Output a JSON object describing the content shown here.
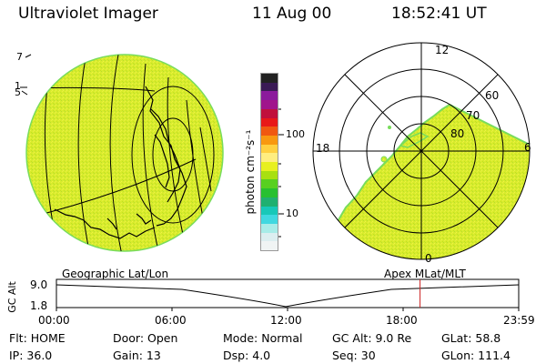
{
  "header": {
    "instrument": "Ultraviolet Imager",
    "date": "11 Aug 00",
    "time": "18:52:41 UT"
  },
  "left_map": {
    "label": "Geographic Lat/Lon",
    "edge_labels": [
      "7",
      "1",
      "5"
    ]
  },
  "colorbar": {
    "unit_label": "photon cm⁻²s⁻¹",
    "ticks": [
      "100",
      "10"
    ],
    "colors": [
      "#222222",
      "#3a1a55",
      "#8b1a9c",
      "#a0148c",
      "#c0103c",
      "#e81818",
      "#f05810",
      "#f89810",
      "#ffd040",
      "#ffee80",
      "#e8f020",
      "#a8e010",
      "#58d020",
      "#28c030",
      "#20b070",
      "#18c8b8",
      "#40d8e0",
      "#a8ece8",
      "#dceef0",
      "#f0f4f4"
    ]
  },
  "polar_plot": {
    "label": "Apex MLat/MLT",
    "mlt_labels": [
      "12",
      "18",
      "6",
      "0"
    ],
    "mlat_labels": [
      "60",
      "70",
      "80"
    ]
  },
  "altitude_plot": {
    "ylabel": "GC Alt",
    "yticks": [
      "9.0",
      "1.8"
    ],
    "xticks": [
      "00:00",
      "06:00",
      "12:00",
      "18:00",
      "23:59"
    ],
    "current_time_hours": 18.878
  },
  "info": {
    "rows": [
      [
        {
          "name": "Flt",
          "value": "Flt: HOME"
        },
        {
          "name": "Door",
          "value": "Door: Open"
        },
        {
          "name": "Mode",
          "value": "Mode: Normal"
        },
        {
          "name": "GC Alt",
          "value": "GC Alt: 9.0 Re"
        },
        {
          "name": "GLat",
          "value": "GLat:  58.8"
        }
      ],
      [
        {
          "name": "IP",
          "value": "IP: 36.0"
        },
        {
          "name": "Gain",
          "value": "Gain: 13"
        },
        {
          "name": "Dsp",
          "value": "Dsp:    4.0"
        },
        {
          "name": "Seq",
          "value": "Seq: 30"
        },
        {
          "name": "GLon",
          "value": "GLon: 111.4"
        }
      ]
    ]
  },
  "colors": {
    "auroral_fill": "#d8ec2c",
    "auroral_edge": "#78dc5c",
    "time_marker": "#cc2222"
  }
}
